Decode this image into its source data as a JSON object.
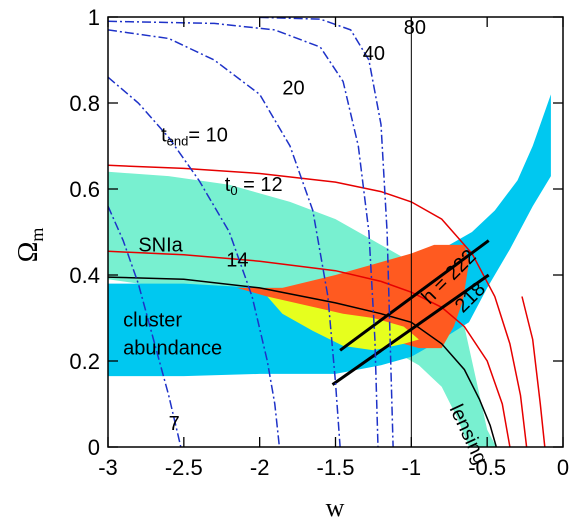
{
  "chart_data": {
    "type": "line",
    "xlabel": "w",
    "ylabel_main": "Ω",
    "ylabel_sub": "m",
    "xlim": [
      -3,
      0
    ],
    "ylim": [
      0,
      1
    ],
    "xticks": [
      -3,
      -2.5,
      -2,
      -1.5,
      -1,
      -0.5,
      0
    ],
    "xtick_labels": [
      "-3",
      "-2.5",
      "-2",
      "-1.5",
      "-1",
      "-0.5",
      "0"
    ],
    "yticks": [
      0,
      0.2,
      0.4,
      0.6,
      0.8,
      1
    ],
    "ytick_labels": [
      "0",
      "0.2",
      "0.4",
      "0.6",
      "0.8",
      "1"
    ],
    "reference_line_x": -1,
    "colors": {
      "cyan": "#00c8f0",
      "aquamarine": "#78f0d0",
      "orange": "#ff5a20",
      "yellow": "#e6ff1e",
      "red": "#e60000",
      "blue": "#1e32c8",
      "black": "#000000"
    },
    "regions": [
      {
        "name": "SNIa",
        "color": "#78f0d0",
        "points": [
          [
            -3,
            0.64
          ],
          [
            -2.6,
            0.63
          ],
          [
            -2.2,
            0.61
          ],
          [
            -1.8,
            0.57
          ],
          [
            -1.5,
            0.53
          ],
          [
            -1.3,
            0.49
          ],
          [
            -1.1,
            0.45
          ],
          [
            -0.9,
            0.41
          ],
          [
            -0.75,
            0.35
          ],
          [
            -0.65,
            0.28
          ],
          [
            -0.6,
            0.2
          ],
          [
            -0.55,
            0.12
          ],
          [
            -0.5,
            0.04
          ],
          [
            -0.44,
            0
          ],
          [
            -0.62,
            0
          ],
          [
            -0.7,
            0.07
          ],
          [
            -0.8,
            0.14
          ],
          [
            -0.95,
            0.19
          ],
          [
            -1.1,
            0.22
          ],
          [
            -1.3,
            0.25
          ],
          [
            -1.5,
            0.27
          ],
          [
            -1.8,
            0.3
          ],
          [
            -2.2,
            0.34
          ],
          [
            -2.6,
            0.37
          ],
          [
            -3,
            0.39
          ]
        ]
      },
      {
        "name": "cluster abundance",
        "color": "#00c8f0",
        "points": [
          [
            -3,
            0.38
          ],
          [
            -2.5,
            0.38
          ],
          [
            -2,
            0.37
          ],
          [
            -1.5,
            0.37
          ],
          [
            -1.2,
            0.4
          ],
          [
            -1,
            0.44
          ],
          [
            -0.8,
            0.46
          ],
          [
            -0.6,
            0.5
          ],
          [
            -0.45,
            0.55
          ],
          [
            -0.3,
            0.62
          ],
          [
            -0.2,
            0.7
          ],
          [
            -0.08,
            0.82
          ],
          [
            -0.08,
            0.63
          ],
          [
            -0.2,
            0.56
          ],
          [
            -0.35,
            0.46
          ],
          [
            -0.5,
            0.37
          ],
          [
            -0.62,
            0.29
          ],
          [
            -0.8,
            0.25
          ],
          [
            -1,
            0.21
          ],
          [
            -1.2,
            0.19
          ],
          [
            -1.5,
            0.17
          ],
          [
            -2,
            0.17
          ],
          [
            -2.5,
            0.165
          ],
          [
            -3,
            0.165
          ]
        ]
      },
      {
        "name": "orange",
        "color": "#ff5a20",
        "points": [
          [
            -2.15,
            0.37
          ],
          [
            -1.85,
            0.37
          ],
          [
            -1.5,
            0.4
          ],
          [
            -1.2,
            0.43
          ],
          [
            -1,
            0.45
          ],
          [
            -0.85,
            0.47
          ],
          [
            -0.65,
            0.47
          ],
          [
            -0.62,
            0.43
          ],
          [
            -0.66,
            0.34
          ],
          [
            -0.72,
            0.28
          ],
          [
            -0.8,
            0.23
          ],
          [
            -0.95,
            0.23
          ],
          [
            -1.15,
            0.25
          ],
          [
            -1.35,
            0.27
          ],
          [
            -1.6,
            0.3
          ],
          [
            -1.85,
            0.34
          ]
        ]
      },
      {
        "name": "yellow",
        "color": "#e6ff1e",
        "points": [
          [
            -1.95,
            0.35
          ],
          [
            -1.7,
            0.33
          ],
          [
            -1.45,
            0.31
          ],
          [
            -1.25,
            0.3
          ],
          [
            -1.05,
            0.28
          ],
          [
            -0.95,
            0.25
          ],
          [
            -1.05,
            0.24
          ],
          [
            -1.25,
            0.225
          ],
          [
            -1.45,
            0.235
          ],
          [
            -1.65,
            0.27
          ],
          [
            -1.85,
            0.31
          ]
        ]
      }
    ],
    "series": [
      {
        "label": "t0 = 12",
        "color": "#e60000",
        "style": "solid",
        "points": [
          [
            -3,
            0.655
          ],
          [
            -2.5,
            0.648
          ],
          [
            -2,
            0.636
          ],
          [
            -1.5,
            0.616
          ],
          [
            -1.2,
            0.594
          ],
          [
            -1,
            0.57
          ],
          [
            -0.8,
            0.53
          ],
          [
            -0.6,
            0.45
          ],
          [
            -0.45,
            0.35
          ],
          [
            -0.35,
            0.24
          ],
          [
            -0.28,
            0.12
          ],
          [
            -0.24,
            0
          ]
        ]
      },
      {
        "label": "14",
        "color": "#e60000",
        "style": "solid",
        "points": [
          [
            -3,
            0.455
          ],
          [
            -2.5,
            0.447
          ],
          [
            -2,
            0.432
          ],
          [
            -1.5,
            0.41
          ],
          [
            -1.2,
            0.385
          ],
          [
            -1,
            0.36
          ],
          [
            -0.8,
            0.325
          ],
          [
            -0.65,
            0.28
          ],
          [
            -0.5,
            0.2
          ],
          [
            -0.4,
            0.1
          ],
          [
            -0.35,
            0
          ]
        ]
      },
      {
        "label": "",
        "color": "#e60000",
        "style": "solid",
        "points": [
          [
            -0.27,
            0.35
          ],
          [
            -0.2,
            0.25
          ],
          [
            -0.15,
            0.1
          ],
          [
            -0.12,
            0
          ]
        ]
      },
      {
        "label": "lensing",
        "color": "#000000",
        "style": "solid",
        "points": [
          [
            -3,
            0.395
          ],
          [
            -2.5,
            0.39
          ],
          [
            -2,
            0.37
          ],
          [
            -1.5,
            0.335
          ],
          [
            -1.2,
            0.31
          ],
          [
            -1,
            0.29
          ],
          [
            -0.8,
            0.24
          ],
          [
            -0.65,
            0.18
          ],
          [
            -0.55,
            0.11
          ],
          [
            -0.48,
            0.05
          ],
          [
            -0.44,
            0
          ]
        ]
      },
      {
        "label": "h = 222",
        "color": "#000000",
        "style": "solid-thick",
        "points": [
          [
            -1.47,
            0.225
          ],
          [
            -0.49,
            0.48
          ]
        ]
      },
      {
        "label": "218",
        "color": "#000000",
        "style": "solid-thick",
        "points": [
          [
            -1.52,
            0.145
          ],
          [
            -0.49,
            0.4
          ]
        ]
      },
      {
        "label": "tend = 10",
        "color": "#1e32c8",
        "style": "dashdot",
        "points": [
          [
            -3,
            0.86
          ],
          [
            -2.8,
            0.8
          ],
          [
            -2.6,
            0.72
          ],
          [
            -2.4,
            0.62
          ],
          [
            -2.2,
            0.5
          ],
          [
            -2.05,
            0.35
          ],
          [
            -1.95,
            0.2
          ],
          [
            -1.9,
            0.1
          ],
          [
            -1.87,
            0
          ]
        ]
      },
      {
        "label": "20",
        "color": "#1e32c8",
        "style": "dashdot",
        "points": [
          [
            -3,
            0.97
          ],
          [
            -2.6,
            0.95
          ],
          [
            -2.3,
            0.9
          ],
          [
            -2,
            0.82
          ],
          [
            -1.8,
            0.7
          ],
          [
            -1.65,
            0.55
          ],
          [
            -1.55,
            0.35
          ],
          [
            -1.5,
            0.15
          ],
          [
            -1.47,
            0
          ]
        ]
      },
      {
        "label": "40",
        "color": "#1e32c8",
        "style": "dashdot",
        "points": [
          [
            -3,
            0.99
          ],
          [
            -2.3,
            0.985
          ],
          [
            -1.9,
            0.97
          ],
          [
            -1.6,
            0.93
          ],
          [
            -1.45,
            0.85
          ],
          [
            -1.35,
            0.7
          ],
          [
            -1.28,
            0.5
          ],
          [
            -1.24,
            0.25
          ],
          [
            -1.22,
            0
          ]
        ]
      },
      {
        "label": "80",
        "color": "#1e32c8",
        "style": "dashdot",
        "points": [
          [
            -2.0,
            0.999
          ],
          [
            -1.6,
            0.995
          ],
          [
            -1.4,
            0.97
          ],
          [
            -1.28,
            0.9
          ],
          [
            -1.2,
            0.75
          ],
          [
            -1.16,
            0.5
          ],
          [
            -1.14,
            0.25
          ],
          [
            -1.12,
            0
          ]
        ]
      },
      {
        "label": "7",
        "color": "#1e32c8",
        "style": "dashdot",
        "points": [
          [
            -3,
            0.56
          ],
          [
            -2.9,
            0.48
          ],
          [
            -2.8,
            0.38
          ],
          [
            -2.7,
            0.25
          ],
          [
            -2.6,
            0.12
          ],
          [
            -2.54,
            0.03
          ],
          [
            -2.52,
            0
          ]
        ]
      }
    ],
    "annotations": [
      {
        "text": "80",
        "x": -1.05,
        "y": 0.96
      },
      {
        "text": "40",
        "x": -1.32,
        "y": 0.9
      },
      {
        "text": "20",
        "x": -1.85,
        "y": 0.82
      },
      {
        "text": "t",
        "sub": "end",
        "rest": "= 10",
        "x": -2.65,
        "y": 0.71
      },
      {
        "text": "t",
        "sub": "0",
        "rest": " = 12",
        "x": -2.23,
        "y": 0.595
      },
      {
        "text": "SNIa",
        "x": -2.8,
        "y": 0.455
      },
      {
        "text": "14",
        "x": -2.22,
        "y": 0.42
      },
      {
        "text": "cluster",
        "x": -2.9,
        "y": 0.28
      },
      {
        "text": "abundance",
        "x": -2.9,
        "y": 0.215
      },
      {
        "text": "7",
        "x": -2.6,
        "y": 0.04
      },
      {
        "text": "lensing",
        "x": -0.75,
        "y": 0.09,
        "rotate": 65
      },
      {
        "text": "h = 222",
        "x": -0.88,
        "y": 0.33,
        "rotate": -45
      },
      {
        "text": "218",
        "x": -0.66,
        "y": 0.31,
        "rotate": -45
      }
    ]
  }
}
